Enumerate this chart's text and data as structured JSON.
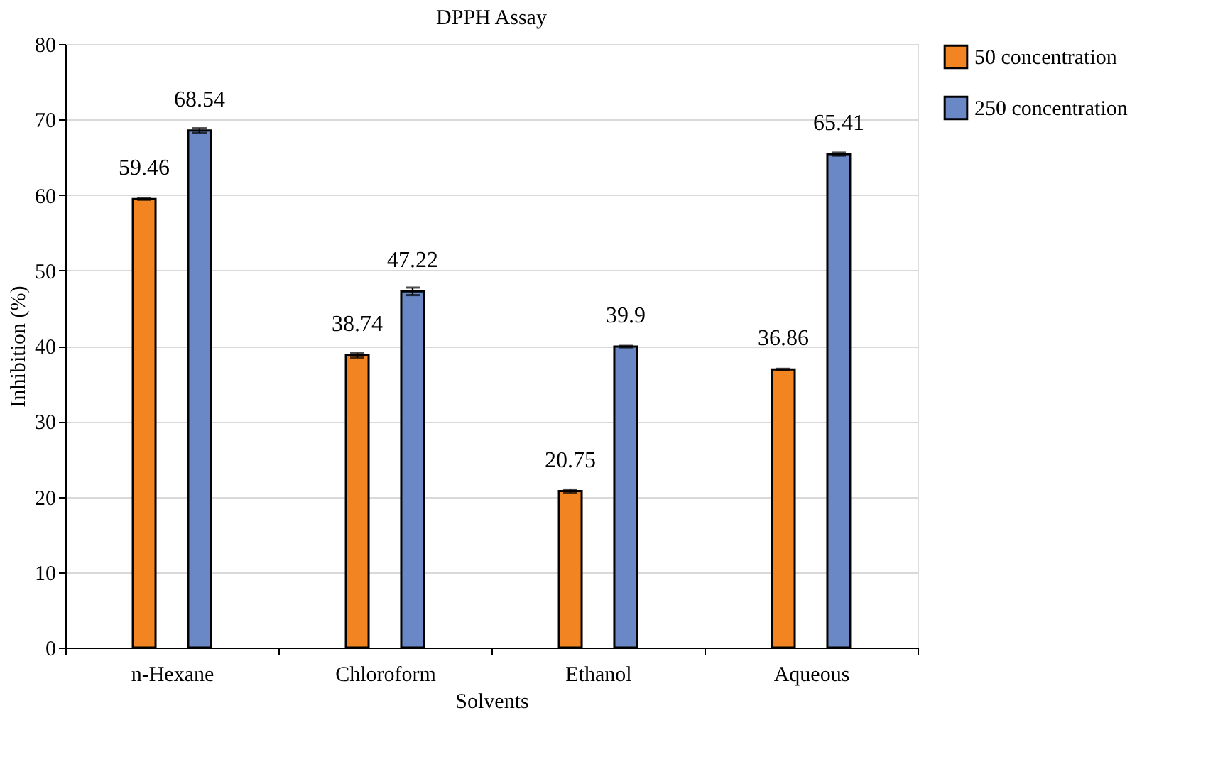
{
  "chart_data": {
    "type": "bar",
    "title": "DPPH Assay",
    "xlabel": "Solvents",
    "ylabel": "Inhibition (%)",
    "categories": [
      "n-Hexane",
      "Chloroform",
      "Ethanol",
      "Aqueous"
    ],
    "series": [
      {
        "name": "50 concentration",
        "color": "#f28522",
        "values": [
          59.46,
          38.74,
          20.75,
          36.86
        ],
        "errors": [
          0.1,
          0.3,
          0.2,
          0.1
        ]
      },
      {
        "name": "250 concentration",
        "color": "#6a88c6",
        "values": [
          68.54,
          47.22,
          39.9,
          65.41
        ],
        "errors": [
          0.3,
          0.5,
          0.1,
          0.2
        ]
      }
    ],
    "ylim": [
      0,
      80
    ],
    "yticks": [
      0,
      10,
      20,
      30,
      40,
      50,
      60,
      70,
      80
    ],
    "grid": "y",
    "legend": "top right",
    "data_labels": true
  }
}
